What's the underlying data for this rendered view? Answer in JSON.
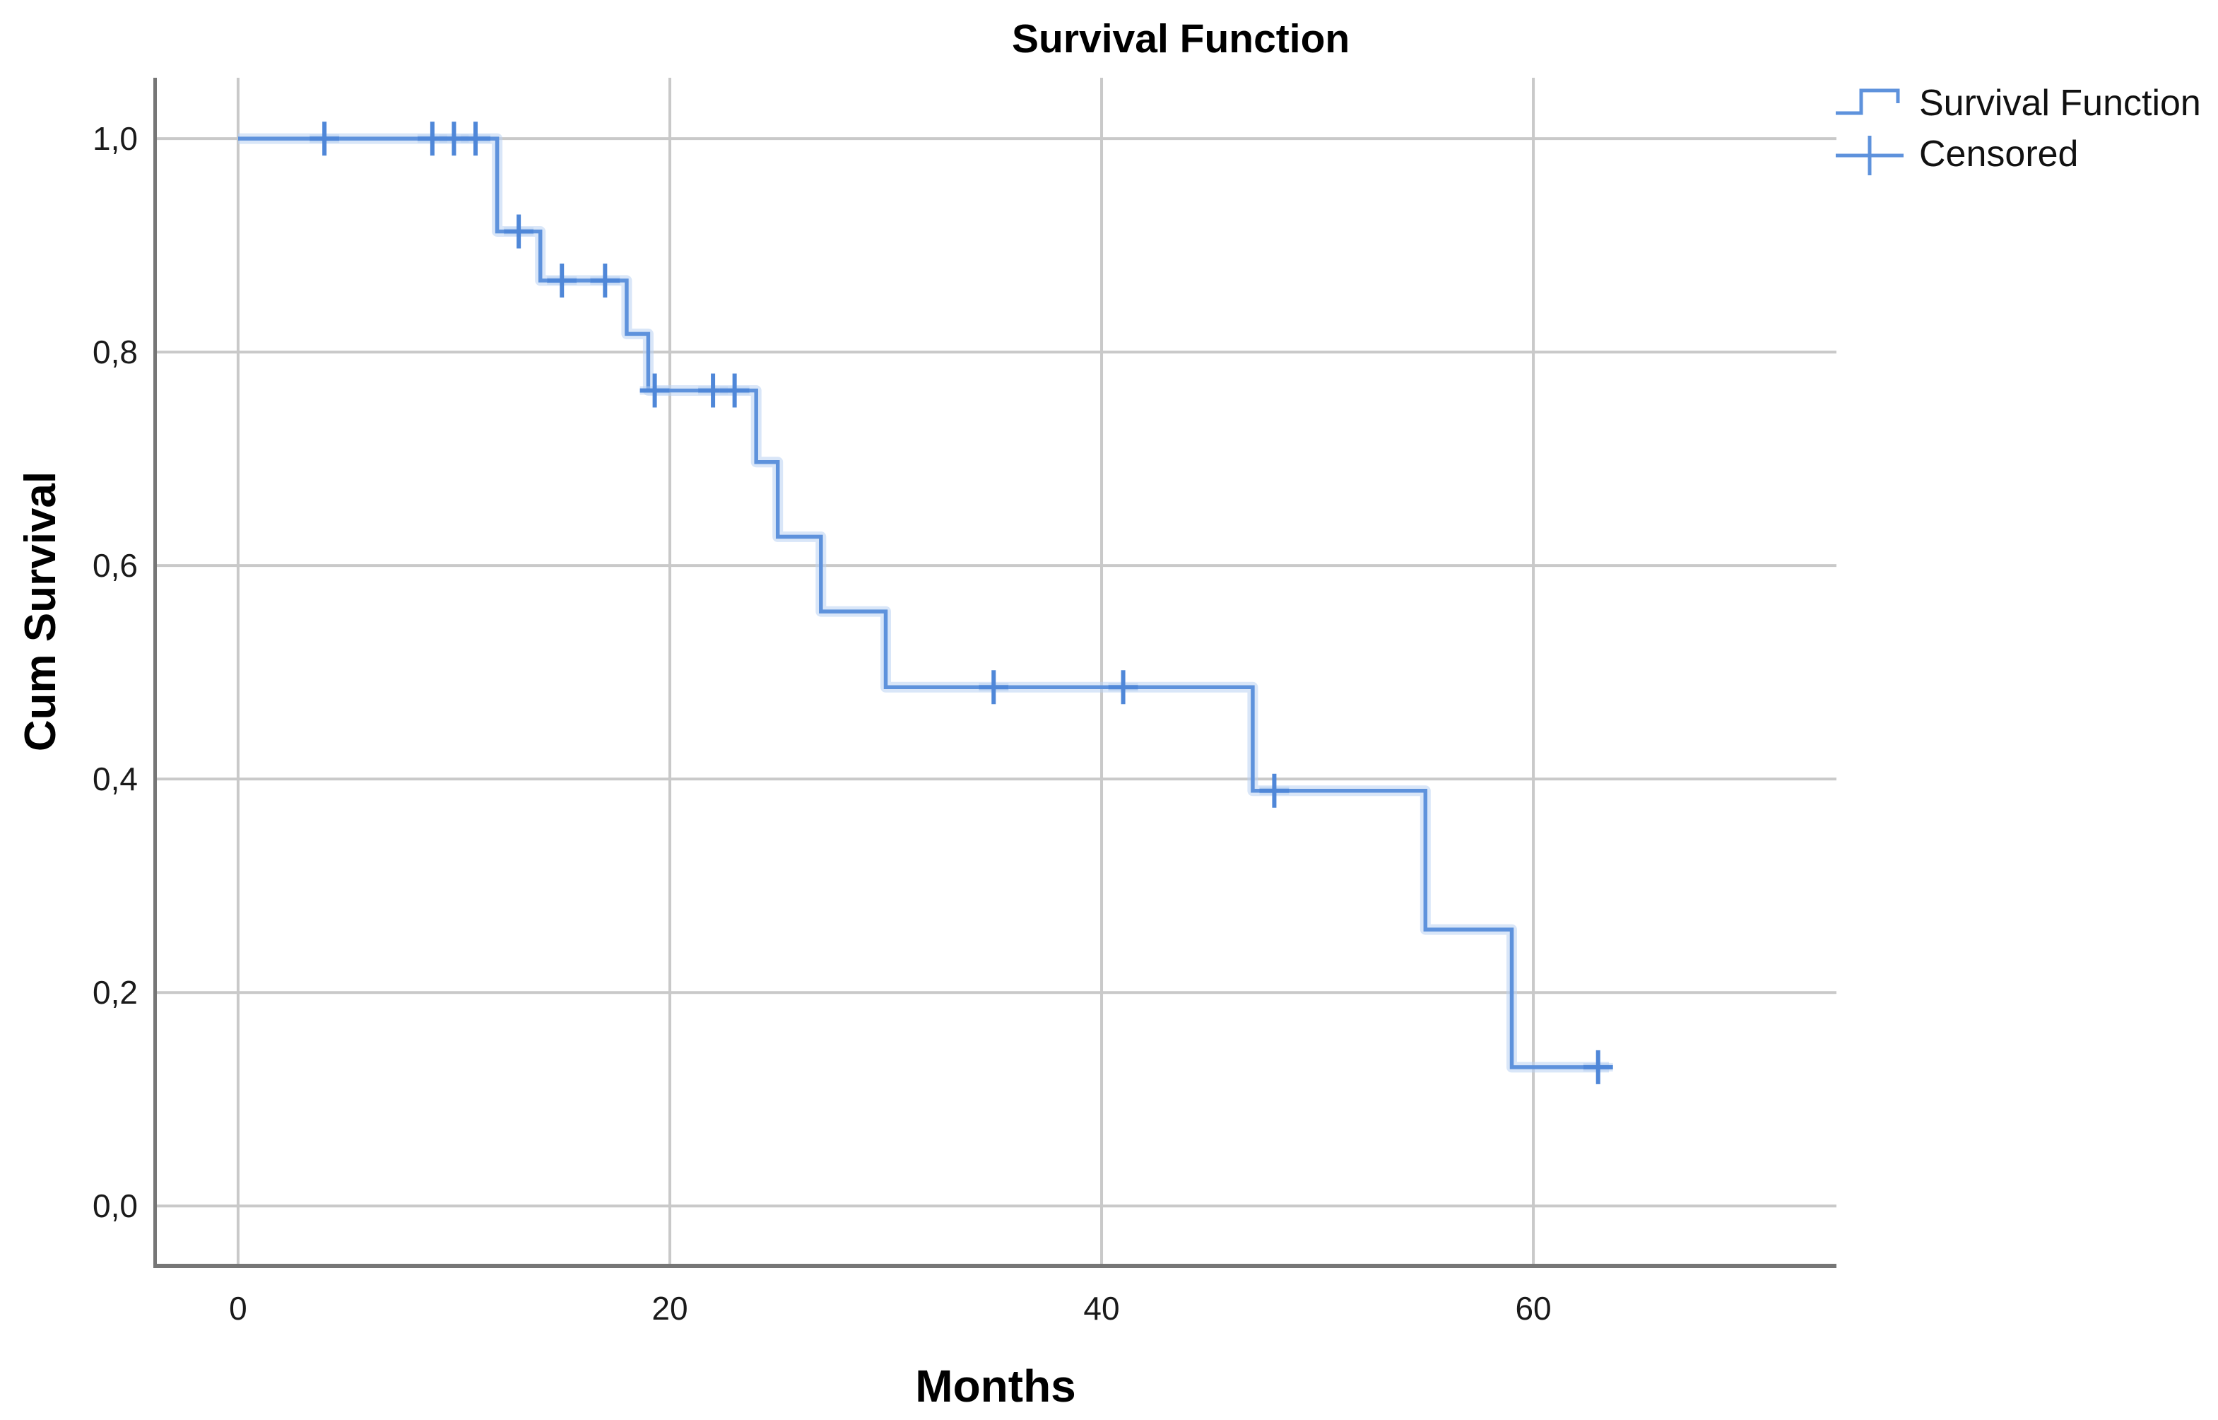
{
  "title": "Survival Function",
  "legend": {
    "position": "top-right",
    "items": [
      {
        "label": "Survival Function",
        "symbol": "step-line"
      },
      {
        "label": "Censored",
        "symbol": "plus-cross"
      }
    ]
  },
  "axes": {
    "x": {
      "label": "Months",
      "ticks": [
        {
          "v": 0,
          "label": "0"
        },
        {
          "v": 20,
          "label": "20"
        },
        {
          "v": 40,
          "label": "40"
        },
        {
          "v": 60,
          "label": "60"
        }
      ]
    },
    "y": {
      "label": "Cum Survival",
      "ticks": [
        {
          "v": 1.0,
          "label": "1,0"
        },
        {
          "v": 0.8,
          "label": "0,8"
        },
        {
          "v": 0.6,
          "label": "0,6"
        },
        {
          "v": 0.4,
          "label": "0,4"
        },
        {
          "v": 0.2,
          "label": "0,2"
        },
        {
          "v": 0.0,
          "label": "0,0"
        }
      ]
    }
  },
  "chart_data": {
    "type": "line",
    "subtype": "kaplan-meier-step",
    "title": "Survival Function",
    "xlabel": "Months",
    "ylabel": "Cum Survival",
    "x_range": [
      -3.926,
      74.04
    ],
    "y_range": [
      -0.0581,
      1.057
    ],
    "x_ticks": [
      0,
      20,
      40,
      60
    ],
    "y_ticks": [
      0.0,
      0.2,
      0.4,
      0.6,
      0.8,
      1.0
    ],
    "grid": true,
    "legend_position": "top-right",
    "decimal_separator": ",",
    "survival_steps": [
      [
        0,
        1.0
      ],
      [
        12,
        0.913
      ],
      [
        14,
        0.867
      ],
      [
        18,
        0.817
      ],
      [
        19,
        0.764
      ],
      [
        24,
        0.697
      ],
      [
        25,
        0.627
      ],
      [
        27,
        0.557
      ],
      [
        30,
        0.486
      ],
      [
        47,
        0.389
      ],
      [
        55,
        0.259
      ],
      [
        59,
        0.13
      ]
    ],
    "curve_end_month": 63.5,
    "censored_points": [
      [
        4,
        1.0
      ],
      [
        9,
        1.0
      ],
      [
        10,
        1.0
      ],
      [
        11,
        1.0
      ],
      [
        13,
        0.913
      ],
      [
        15,
        0.867
      ],
      [
        17,
        0.867
      ],
      [
        19.3,
        0.764
      ],
      [
        22,
        0.764
      ],
      [
        23,
        0.764
      ],
      [
        35,
        0.486
      ],
      [
        41,
        0.486
      ],
      [
        48,
        0.389
      ],
      [
        63,
        0.13
      ]
    ]
  },
  "colors": {
    "line": "#5e92dc",
    "halo": "#b9d1f2",
    "censor": "#4f87d8",
    "grid": "#c9c9c9",
    "axis": "#767676",
    "text": "#1a1a1a"
  }
}
